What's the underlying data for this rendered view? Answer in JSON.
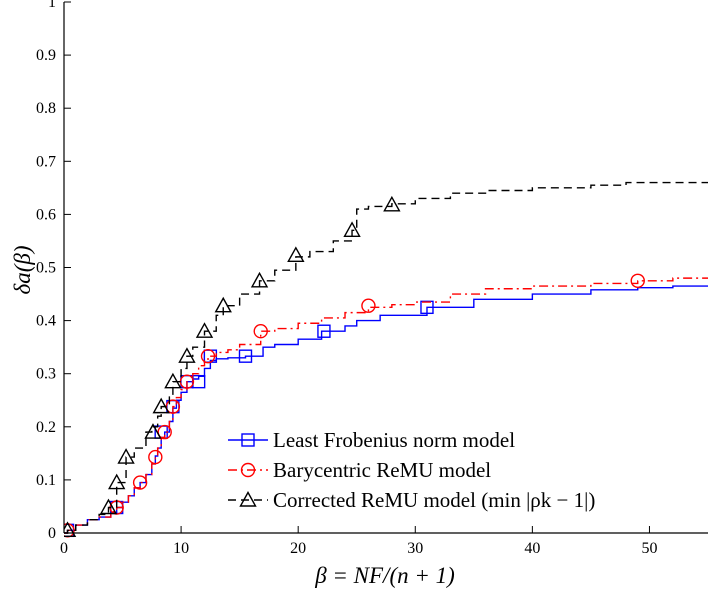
{
  "chart_data": {
    "type": "line",
    "title": "",
    "xlabel": "β = NF/(n + 1)",
    "ylabel": "δa(β)",
    "xlim": [
      0,
      55
    ],
    "ylim": [
      0,
      1
    ],
    "xticks": [
      0,
      10,
      20,
      30,
      40,
      50
    ],
    "xtick_labels": [
      "0",
      "10",
      "20",
      "30",
      "40",
      "50"
    ],
    "yticks": [
      0,
      0.1,
      0.2,
      0.3,
      0.4,
      0.5,
      0.6,
      0.7,
      0.8,
      0.9,
      1
    ],
    "ytick_labels": [
      "0",
      "0.1",
      "0.2",
      "0.3",
      "0.4",
      "0.5",
      "0.6",
      "0.7",
      "0.8",
      "0.9",
      "1"
    ],
    "grid": false,
    "legend_position": "bottom-right",
    "series": [
      {
        "name": "Least Frobenius norm model",
        "color": "#0000ff",
        "line_style": "solid",
        "marker": "square",
        "x": [
          0,
          0.3,
          1,
          2,
          3,
          4,
          4.5,
          5,
          5.5,
          6,
          6.5,
          7,
          7.5,
          7.8,
          8,
          8.3,
          8.6,
          9,
          9.3,
          9.6,
          10,
          10.5,
          11,
          11.5,
          12,
          12.5,
          13,
          14,
          15.5,
          17,
          18,
          20,
          22,
          24,
          25,
          27,
          31,
          35,
          40,
          45,
          49,
          52,
          55
        ],
        "y": [
          0,
          0.005,
          0.015,
          0.025,
          0.03,
          0.038,
          0.048,
          0.058,
          0.07,
          0.085,
          0.095,
          0.11,
          0.13,
          0.145,
          0.16,
          0.18,
          0.19,
          0.21,
          0.235,
          0.25,
          0.265,
          0.285,
          0.29,
          0.295,
          0.31,
          0.325,
          0.328,
          0.33,
          0.333,
          0.35,
          0.355,
          0.365,
          0.38,
          0.39,
          0.4,
          0.41,
          0.425,
          0.44,
          0.45,
          0.458,
          0.462,
          0.465,
          0.465
        ],
        "marker_x": [
          0.3,
          4.5,
          8.3,
          9.3,
          10.5,
          11.5,
          12.5,
          15.5,
          22.2,
          31
        ],
        "marker_y": [
          0.005,
          0.048,
          0.19,
          0.238,
          0.285,
          0.285,
          0.333,
          0.333,
          0.38,
          0.425
        ]
      },
      {
        "name": "Barycentric ReMU model",
        "color": "#ff0000",
        "line_style": "dash-dot",
        "marker": "circle",
        "x": [
          0,
          0.3,
          1,
          2,
          3,
          4,
          4.5,
          5,
          5.5,
          6,
          6.5,
          7,
          7.5,
          7.8,
          8,
          8.3,
          8.6,
          9,
          9.3,
          9.6,
          10,
          10.5,
          11,
          11.5,
          12,
          12.3,
          13,
          14,
          15,
          16.8,
          18,
          20,
          22,
          24,
          26,
          28,
          30,
          33,
          36,
          40,
          45,
          49,
          52,
          55
        ],
        "y": [
          0,
          0.005,
          0.015,
          0.025,
          0.03,
          0.04,
          0.048,
          0.058,
          0.07,
          0.085,
          0.095,
          0.11,
          0.13,
          0.145,
          0.16,
          0.18,
          0.19,
          0.21,
          0.238,
          0.255,
          0.27,
          0.285,
          0.3,
          0.315,
          0.325,
          0.333,
          0.34,
          0.345,
          0.355,
          0.38,
          0.385,
          0.395,
          0.405,
          0.415,
          0.425,
          0.43,
          0.435,
          0.45,
          0.46,
          0.465,
          0.47,
          0.475,
          0.48,
          0.48
        ],
        "marker_x": [
          0.3,
          4.5,
          6.5,
          7.8,
          8.6,
          9.3,
          10.5,
          12.3,
          16.8,
          26,
          49
        ],
        "marker_y": [
          0.005,
          0.048,
          0.095,
          0.143,
          0.19,
          0.238,
          0.285,
          0.333,
          0.38,
          0.428,
          0.475
        ]
      },
      {
        "name": "Corrected ReMU model (min |ρk − 1|)",
        "color": "#000000",
        "line_style": "dashed",
        "marker": "triangle",
        "x": [
          0,
          0.3,
          1,
          2,
          3,
          3.8,
          4.5,
          5.3,
          6,
          7,
          7.5,
          8,
          8.3,
          9,
          9.3,
          10,
          10.5,
          11,
          12,
          13,
          13.6,
          15,
          16.7,
          18,
          19.8,
          21,
          23,
          24.6,
          25,
          26,
          28,
          30,
          33,
          36,
          40,
          45,
          48,
          52,
          55
        ],
        "y": [
          0,
          0.005,
          0.015,
          0.025,
          0.035,
          0.048,
          0.095,
          0.143,
          0.16,
          0.19,
          0.2,
          0.22,
          0.238,
          0.26,
          0.285,
          0.31,
          0.333,
          0.35,
          0.38,
          0.41,
          0.428,
          0.45,
          0.475,
          0.495,
          0.52,
          0.53,
          0.55,
          0.57,
          0.61,
          0.615,
          0.62,
          0.63,
          0.64,
          0.645,
          0.65,
          0.655,
          0.66,
          0.66,
          0.66
        ],
        "marker_x": [
          0.3,
          3.8,
          4.5,
          5.3,
          7.6,
          8.3,
          9.3,
          10.5,
          12,
          13.6,
          16.7,
          19.8,
          24.6,
          28
        ],
        "marker_y": [
          0.005,
          0.048,
          0.095,
          0.143,
          0.19,
          0.238,
          0.285,
          0.333,
          0.38,
          0.428,
          0.475,
          0.523,
          0.57,
          0.618
        ]
      }
    ]
  }
}
